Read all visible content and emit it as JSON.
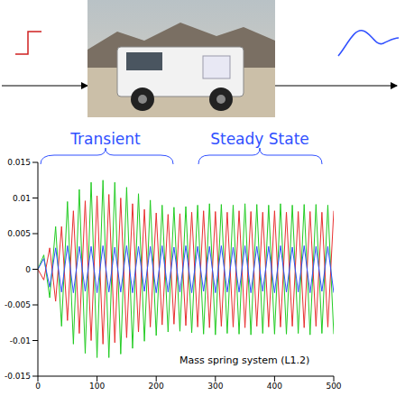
{
  "chart_data": {
    "type": "line",
    "annotations": [
      "Transient",
      "Steady State",
      "Mass spring system (L1.2)"
    ],
    "x": [
      0,
      10,
      20,
      30,
      40,
      50,
      60,
      70,
      80,
      90,
      100,
      110,
      120,
      130,
      140,
      150,
      160,
      170,
      180,
      190,
      200,
      210,
      220,
      230,
      240,
      250,
      260,
      270,
      280,
      290,
      300,
      310,
      320,
      330,
      340,
      350,
      360,
      370,
      380,
      390,
      400,
      410,
      420,
      430,
      440,
      450,
      460,
      470,
      480,
      490,
      500
    ],
    "series": [
      {
        "color": "#22cc22",
        "values": [
          0,
          0.002,
          -0.004,
          0.006,
          -0.008,
          0.0095,
          -0.0105,
          0.0112,
          -0.0118,
          0.0122,
          -0.0124,
          0.0125,
          -0.0124,
          0.0122,
          -0.0119,
          0.0115,
          -0.0111,
          0.0106,
          -0.0101,
          0.0097,
          -0.0093,
          0.009,
          -0.0088,
          0.0087,
          -0.0087,
          0.0088,
          -0.0089,
          0.009,
          -0.0091,
          0.0092,
          -0.0092,
          0.0091,
          -0.009,
          0.009,
          -0.0091,
          0.0092,
          -0.0092,
          0.0091,
          -0.009,
          0.009,
          -0.0091,
          0.0092,
          -0.0091,
          0.009,
          -0.009,
          0.0091,
          -0.0092,
          0.0091,
          -0.009,
          0.009,
          -0.0091
        ]
      },
      {
        "color": "#e83030",
        "values": [
          0,
          -0.0015,
          0.003,
          -0.0045,
          0.006,
          -0.0072,
          0.0082,
          -0.009,
          0.0096,
          -0.01,
          0.0103,
          -0.0105,
          0.0105,
          -0.0103,
          0.01,
          -0.0096,
          0.0092,
          -0.0088,
          0.0084,
          -0.0081,
          0.0079,
          -0.0078,
          0.0077,
          -0.0077,
          0.0078,
          -0.0079,
          0.008,
          -0.0081,
          0.0082,
          -0.0082,
          0.0081,
          -0.008,
          0.008,
          -0.0081,
          0.0082,
          -0.0082,
          0.0081,
          -0.008,
          0.008,
          -0.0081,
          0.0082,
          -0.0081,
          0.008,
          -0.008,
          0.0081,
          -0.0082,
          0.0081,
          -0.008,
          0.008,
          -0.0081,
          0.0082
        ]
      },
      {
        "color": "#3050ff",
        "values": [
          0,
          0.0015,
          -0.0025,
          0.003,
          -0.0032,
          0.0033,
          -0.0033,
          0.0032,
          -0.0031,
          0.0032,
          -0.0033,
          0.0033,
          -0.0032,
          0.0031,
          -0.0032,
          0.0033,
          -0.0033,
          0.0032,
          -0.0031,
          0.0032,
          -0.0033,
          0.0033,
          -0.0032,
          0.0031,
          -0.0032,
          0.0033,
          -0.0033,
          0.0032,
          -0.0031,
          0.0032,
          -0.0033,
          0.0033,
          -0.0032,
          0.0031,
          -0.0032,
          0.0033,
          -0.0033,
          0.0032,
          -0.0031,
          0.0032,
          -0.0033,
          0.0033,
          -0.0032,
          0.0031,
          -0.0032,
          0.0033,
          -0.0033,
          0.0032,
          -0.0031,
          0.0032,
          -0.0033
        ]
      }
    ],
    "xlim": [
      0,
      500
    ],
    "xticks": [
      0,
      100,
      200,
      300,
      400,
      500
    ],
    "ylim": [
      -0.015,
      0.015
    ],
    "yticks": [
      -0.015,
      -0.01,
      -0.005,
      0,
      0.005,
      0.01,
      0.015
    ],
    "grid": false
  }
}
